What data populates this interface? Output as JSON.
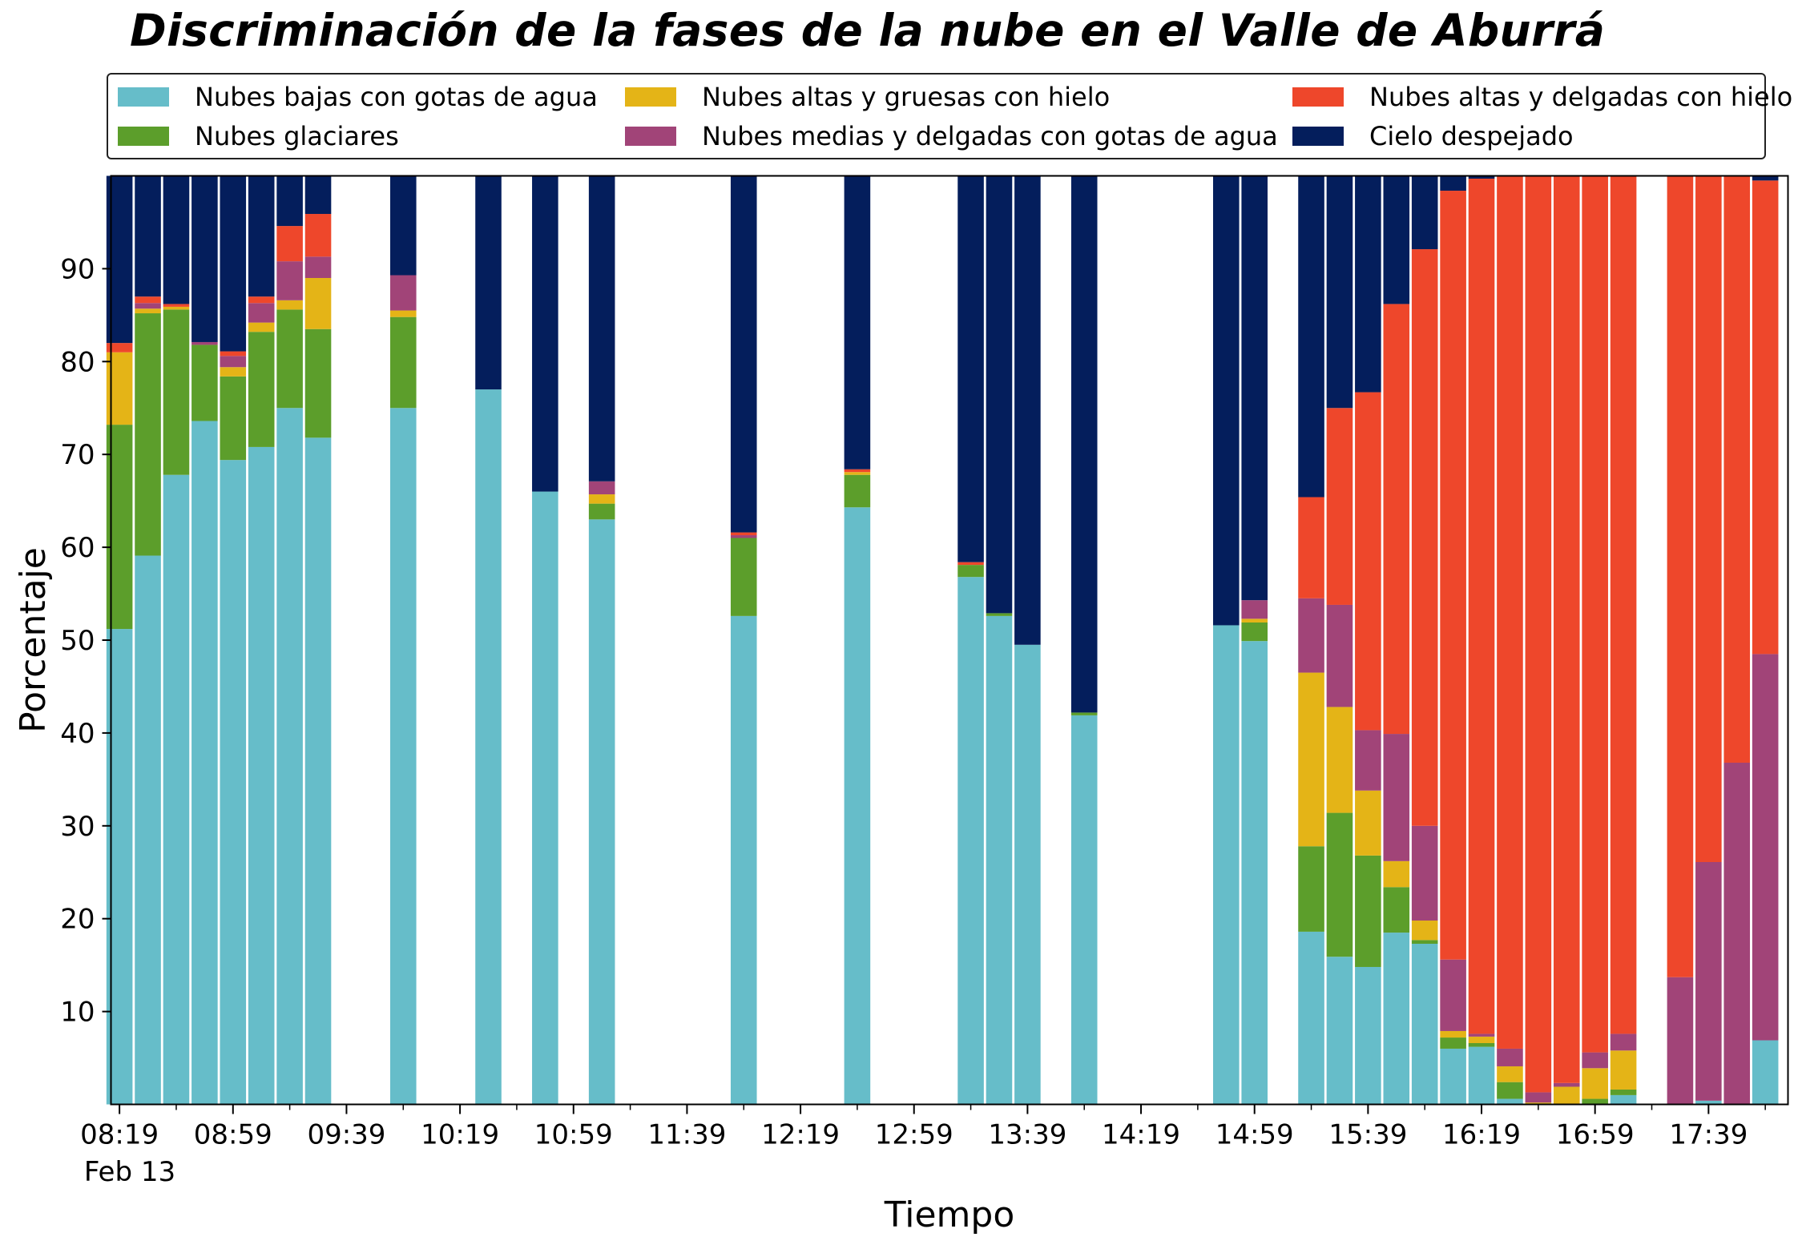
{
  "chart_data": {
    "type": "bar",
    "stacked": true,
    "title": "Discriminación de la fases de la nube en el Valle de Aburrá",
    "xlabel": "Tiempo",
    "ylabel": "Porcentaje",
    "ylim": [
      0,
      100
    ],
    "yticks": [
      10,
      20,
      30,
      40,
      50,
      60,
      70,
      80,
      90
    ],
    "xlim": [
      496,
      1087
    ],
    "x_unit": "minutes of day",
    "xticks": [
      {
        "x": 499,
        "label": "08:19"
      },
      {
        "x": 539,
        "label": "08:59"
      },
      {
        "x": 579,
        "label": "09:39"
      },
      {
        "x": 619,
        "label": "10:19"
      },
      {
        "x": 659,
        "label": "10:59"
      },
      {
        "x": 699,
        "label": "11:39"
      },
      {
        "x": 739,
        "label": "12:19"
      },
      {
        "x": 779,
        "label": "12:59"
      },
      {
        "x": 819,
        "label": "13:39"
      },
      {
        "x": 859,
        "label": "14:19"
      },
      {
        "x": 899,
        "label": "14:59"
      },
      {
        "x": 939,
        "label": "15:39"
      },
      {
        "x": 979,
        "label": "16:19"
      },
      {
        "x": 1019,
        "label": "16:59"
      },
      {
        "x": 1059,
        "label": "17:39"
      }
    ],
    "x_minor_ticks": [
      519,
      559,
      599,
      639,
      679,
      719,
      759,
      799,
      839,
      879,
      919,
      959,
      999,
      1039,
      1079
    ],
    "date_label": "Feb 13",
    "bar_width": 9.2,
    "grid": false,
    "legend_position": "top",
    "series": [
      {
        "name": "Nubes bajas con gotas de agua",
        "color": "#66bdc9"
      },
      {
        "name": "Nubes glaciares",
        "color": "#5c9e2b"
      },
      {
        "name": "Nubes altas y gruesas con hielo",
        "color": "#e4b417"
      },
      {
        "name": "Nubes medias y delgadas con gotas de agua",
        "color": "#a14478"
      },
      {
        "name": "Nubes altas y delgadas con hielo",
        "color": "#ee472b"
      },
      {
        "name": "Cielo despejado",
        "color": "#041e5c"
      }
    ],
    "bars": [
      {
        "x": 499,
        "values": [
          51.2,
          22.0,
          7.8,
          0.0,
          1.0,
          18.0
        ]
      },
      {
        "x": 509,
        "values": [
          59.1,
          26.1,
          0.5,
          0.6,
          0.7,
          13.0
        ]
      },
      {
        "x": 519,
        "values": [
          67.8,
          17.8,
          0.3,
          0.0,
          0.3,
          13.8
        ]
      },
      {
        "x": 529,
        "values": [
          73.6,
          8.2,
          0.0,
          0.3,
          0.0,
          17.9
        ]
      },
      {
        "x": 539,
        "values": [
          69.4,
          9.0,
          1.0,
          1.2,
          0.5,
          18.9
        ]
      },
      {
        "x": 549,
        "values": [
          70.8,
          12.4,
          1.0,
          2.1,
          0.7,
          13.0
        ]
      },
      {
        "x": 559,
        "values": [
          75.0,
          10.6,
          1.0,
          4.2,
          3.8,
          5.4
        ]
      },
      {
        "x": 569,
        "values": [
          71.8,
          11.7,
          5.5,
          2.3,
          4.6,
          4.1
        ]
      },
      {
        "x": 599,
        "values": [
          75.0,
          9.8,
          0.7,
          3.8,
          0.0,
          10.7
        ]
      },
      {
        "x": 629,
        "values": [
          77.0,
          0.0,
          0.0,
          0.0,
          0.0,
          23.0
        ]
      },
      {
        "x": 649,
        "values": [
          66.0,
          0.0,
          0.0,
          0.0,
          0.0,
          34.0
        ]
      },
      {
        "x": 669,
        "values": [
          63.0,
          1.7,
          1.0,
          1.4,
          0.0,
          32.9
        ]
      },
      {
        "x": 719,
        "values": [
          52.6,
          8.4,
          0.0,
          0.3,
          0.3,
          38.4
        ]
      },
      {
        "x": 759,
        "values": [
          64.3,
          3.5,
          0.3,
          0.0,
          0.3,
          31.6
        ]
      },
      {
        "x": 799,
        "values": [
          56.8,
          1.3,
          0.0,
          0.0,
          0.3,
          41.6
        ]
      },
      {
        "x": 809,
        "values": [
          52.6,
          0.3,
          0.0,
          0.0,
          0.0,
          47.1
        ]
      },
      {
        "x": 819,
        "values": [
          49.5,
          0.0,
          0.0,
          0.0,
          0.0,
          50.5
        ]
      },
      {
        "x": 839,
        "values": [
          41.9,
          0.3,
          0.0,
          0.0,
          0.0,
          57.8
        ]
      },
      {
        "x": 889,
        "values": [
          51.6,
          0.0,
          0.0,
          0.0,
          0.0,
          48.4
        ]
      },
      {
        "x": 899,
        "values": [
          49.9,
          2.0,
          0.4,
          2.0,
          0.0,
          45.7
        ]
      },
      {
        "x": 919,
        "values": [
          18.6,
          9.2,
          18.7,
          8.0,
          10.9,
          34.6
        ]
      },
      {
        "x": 929,
        "values": [
          15.9,
          15.5,
          11.4,
          11.0,
          21.2,
          25.0
        ]
      },
      {
        "x": 939,
        "values": [
          14.8,
          12.0,
          7.0,
          6.5,
          36.4,
          23.3
        ]
      },
      {
        "x": 949,
        "values": [
          18.5,
          4.9,
          2.8,
          13.7,
          46.3,
          13.8
        ]
      },
      {
        "x": 959,
        "values": [
          17.3,
          0.4,
          2.1,
          10.2,
          62.1,
          7.9
        ]
      },
      {
        "x": 969,
        "values": [
          6.0,
          1.2,
          0.7,
          7.7,
          82.8,
          1.6
        ]
      },
      {
        "x": 979,
        "values": [
          6.2,
          0.4,
          0.7,
          0.3,
          92.1,
          0.3
        ]
      },
      {
        "x": 989,
        "values": [
          0.6,
          1.8,
          1.7,
          1.9,
          94.0,
          0.0
        ]
      },
      {
        "x": 999,
        "values": [
          0.0,
          0.0,
          0.2,
          1.1,
          98.7,
          0.0
        ]
      },
      {
        "x": 1009,
        "values": [
          0.0,
          0.0,
          1.9,
          0.4,
          97.7,
          0.0
        ]
      },
      {
        "x": 1019,
        "values": [
          0.0,
          0.6,
          3.3,
          1.7,
          94.4,
          0.0
        ]
      },
      {
        "x": 1029,
        "values": [
          1.0,
          0.6,
          4.2,
          1.8,
          92.4,
          0.0
        ]
      },
      {
        "x": 1049,
        "values": [
          0.0,
          0.0,
          0.0,
          13.7,
          86.3,
          0.0
        ]
      },
      {
        "x": 1059,
        "values": [
          0.4,
          0.0,
          0.0,
          25.7,
          73.9,
          0.0
        ]
      },
      {
        "x": 1069,
        "values": [
          0.0,
          0.0,
          0.0,
          36.8,
          63.2,
          0.0
        ]
      },
      {
        "x": 1079,
        "values": [
          6.9,
          0.0,
          0.0,
          41.6,
          51.0,
          0.5
        ]
      }
    ]
  }
}
